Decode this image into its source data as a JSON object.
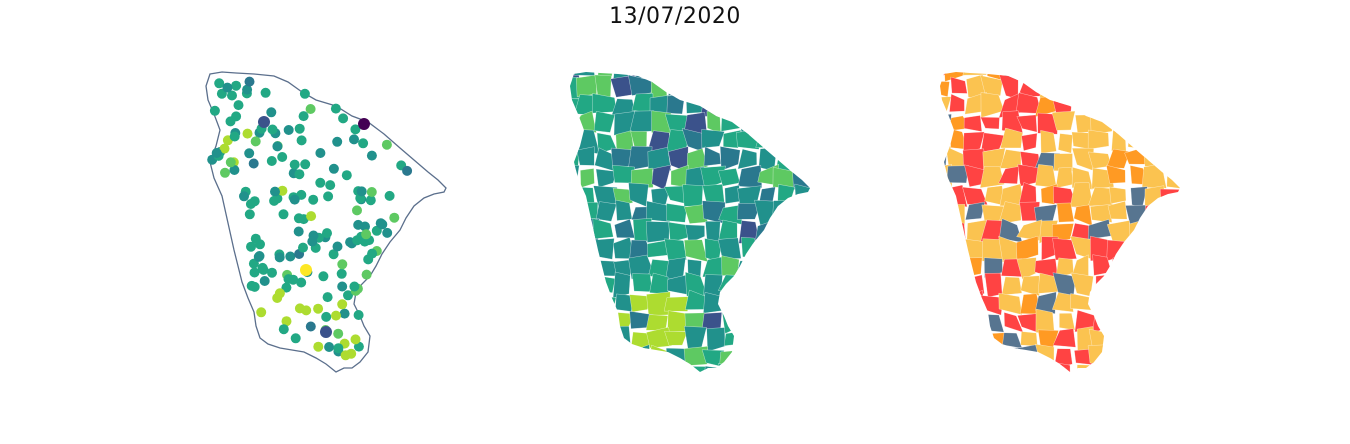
{
  "title": "13/07/2020",
  "colors": {
    "outline": "#5b6f8c",
    "viridis": [
      "#440154",
      "#3b528b",
      "#21918c",
      "#2a788e",
      "#22a884",
      "#5ec962",
      "#addc30",
      "#fde725"
    ],
    "classes": [
      "#fbc350",
      "#ff4343",
      "#ff9a23",
      "#577590"
    ]
  },
  "panels": [
    {
      "name": "point-map",
      "type": "points"
    },
    {
      "name": "choropleth-map",
      "type": "continuous"
    },
    {
      "name": "class-map",
      "type": "categorical"
    }
  ]
}
